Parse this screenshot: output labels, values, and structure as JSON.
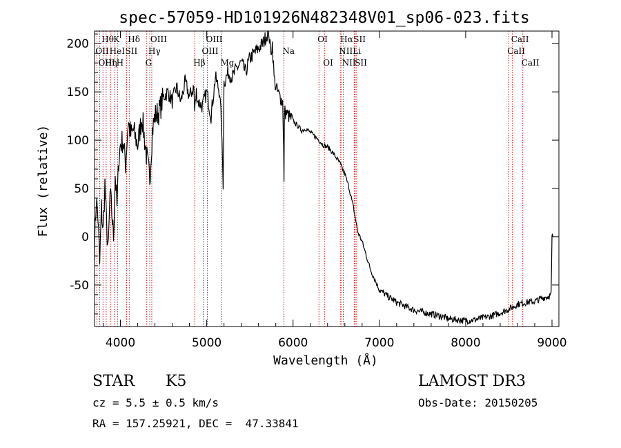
{
  "chart_data": {
    "type": "line",
    "title": "spec-57059-HD101926N482348V01_sp06-023.fits",
    "xlabel": "Wavelength (Å)",
    "ylabel": "Flux (relative)",
    "xlim": [
      3700,
      9080
    ],
    "ylim": [
      -93,
      213
    ],
    "xticks": [
      4000,
      5000,
      6000,
      7000,
      8000,
      9000
    ],
    "yticks": [
      -50,
      0,
      50,
      100,
      150,
      200
    ],
    "series": [
      {
        "name": "spectrum",
        "x": [
          3700,
          3720,
          3740,
          3760,
          3780,
          3800,
          3820,
          3840,
          3860,
          3880,
          3900,
          3920,
          3940,
          3960,
          3980,
          4000,
          4030,
          4060,
          4090,
          4120,
          4150,
          4200,
          4250,
          4300,
          4340,
          4370,
          4400,
          4450,
          4500,
          4550,
          4600,
          4650,
          4700,
          4750,
          4800,
          4850,
          4860,
          4880,
          4900,
          4950,
          5000,
          5050,
          5100,
          5150,
          5170,
          5190,
          5200,
          5250,
          5300,
          5350,
          5400,
          5450,
          5500,
          5550,
          5600,
          5650,
          5700,
          5720,
          5740,
          5760,
          5780,
          5800,
          5820,
          5850,
          5880,
          5890,
          5895,
          5900,
          5950,
          6000,
          6050,
          6100,
          6150,
          6200,
          6250,
          6300,
          6350,
          6400,
          6450,
          6500,
          6550,
          6563,
          6600,
          6650,
          6700,
          6750,
          6800,
          6850,
          6900,
          6950,
          7000,
          7100,
          7200,
          7300,
          7400,
          7500,
          7600,
          7700,
          7800,
          7900,
          8000,
          8100,
          8200,
          8300,
          8400,
          8500,
          8600,
          8700,
          8800,
          8900,
          8950,
          8990,
          9000,
          9010
        ],
        "y": [
          -10,
          40,
          20,
          -30,
          30,
          5,
          55,
          10,
          -15,
          45,
          25,
          0,
          65,
          30,
          80,
          95,
          100,
          75,
          120,
          105,
          110,
          95,
          125,
          85,
          60,
          110,
          125,
          130,
          145,
          150,
          140,
          155,
          140,
          160,
          145,
          155,
          130,
          150,
          140,
          135,
          150,
          125,
          165,
          150,
          115,
          55,
          160,
          170,
          165,
          175,
          180,
          170,
          185,
          190,
          195,
          200,
          210,
          212,
          190,
          200,
          165,
          155,
          150,
          145,
          140,
          100,
          55,
          130,
          125,
          120,
          115,
          110,
          112,
          108,
          104,
          100,
          95,
          93,
          88,
          82,
          75,
          72,
          65,
          50,
          30,
          5,
          -5,
          -20,
          -35,
          -45,
          -55,
          -62,
          -68,
          -72,
          -76,
          -78,
          -80,
          -82,
          -85,
          -86,
          -87,
          -86,
          -84,
          -82,
          -79,
          -75,
          -70,
          -68,
          -67,
          -63,
          -62,
          -60,
          0,
          0
        ]
      }
    ],
    "spectral_lines": [
      {
        "label": "Hθ",
        "wavelength": 3798,
        "row": 1
      },
      {
        "label": "OII",
        "wavelength": 3727,
        "row": 2
      },
      {
        "label": "OIII",
        "wavelength": 3760,
        "row": 3
      },
      {
        "label": "K",
        "wavelength": 3934,
        "row": 1
      },
      {
        "label": "HeI",
        "wavelength": 3889,
        "row": 2
      },
      {
        "label": "Hη",
        "wavelength": 3835,
        "row": 3
      },
      {
        "label": "Hδ",
        "wavelength": 4102,
        "row": 1
      },
      {
        "label": "SII",
        "wavelength": 4072,
        "row": 2
      },
      {
        "label": "H",
        "wavelength": 3969,
        "row": 3
      },
      {
        "label": "OIII",
        "wavelength": 4363,
        "row": 1
      },
      {
        "label": "Hγ",
        "wavelength": 4340,
        "row": 2
      },
      {
        "label": "G",
        "wavelength": 4305,
        "row": 3
      },
      {
        "label": "OIII",
        "wavelength": 5007,
        "row": 1
      },
      {
        "label": "OIII",
        "wavelength": 4959,
        "row": 2
      },
      {
        "label": "Hβ",
        "wavelength": 4861,
        "row": 3
      },
      {
        "label": "Mg",
        "wavelength": 5175,
        "row": 3
      },
      {
        "label": "Na",
        "wavelength": 5893,
        "row": 2
      },
      {
        "label": "OI",
        "wavelength": 6300,
        "row": 1
      },
      {
        "label": "OI",
        "wavelength": 6364,
        "row": 3
      },
      {
        "label": "Hα",
        "wavelength": 6563,
        "row": 1
      },
      {
        "label": "SII",
        "wavelength": 6716,
        "row": 1
      },
      {
        "label": "NII",
        "wavelength": 6548,
        "row": 2
      },
      {
        "label": "Li",
        "wavelength": 6708,
        "row": 2
      },
      {
        "label": "NII",
        "wavelength": 6583,
        "row": 3
      },
      {
        "label": "SII",
        "wavelength": 6731,
        "row": 3
      },
      {
        "label": "CaII",
        "wavelength": 8542,
        "row": 1
      },
      {
        "label": "CaII",
        "wavelength": 8498,
        "row": 2
      },
      {
        "label": "CaII",
        "wavelength": 8662,
        "row": 3
      }
    ]
  },
  "info": {
    "class_label": "STAR",
    "subclass": "K5",
    "cz": "cz = 5.5 ± 0.5 km/s",
    "radec": "RA = 157.25921, DEC =  47.33841",
    "survey": "LAMOST DR3",
    "obs_date": "Obs-Date: 20150205"
  },
  "colors": {
    "spectrum": "#000000",
    "line_markers": "#cc0000"
  }
}
